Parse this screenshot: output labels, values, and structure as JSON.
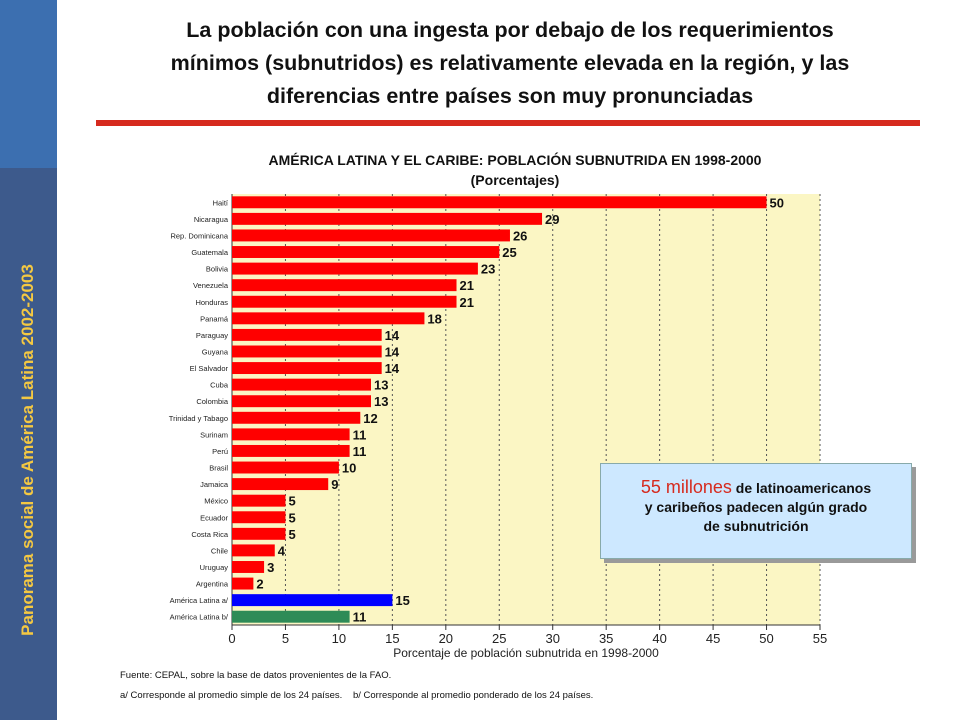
{
  "sidebar": {
    "text": "Panorama social de América Latina 2002-2003"
  },
  "headline": {
    "line1": "La población con una ingesta por debajo de los requerimientos",
    "line2": "mínimos (subnutridos) es relativamente elevada en la región, y las",
    "line3": "diferencias entre países son muy pronunciadas"
  },
  "colors": {
    "bar": "#ff0000",
    "latin_america_a": "#0000ff",
    "latin_america_b": "#2e8b57",
    "plot_bg": "#fbf6c4",
    "accent": "#d62a1e"
  },
  "chart_data": {
    "type": "bar",
    "orientation": "horizontal",
    "title": "AMÉRICA LATINA Y EL CARIBE: POBLACIÓN SUBNUTRIDA EN 1998-2000",
    "subtitle": "(Porcentajes)",
    "xlabel": "Porcentaje de población subnutrida en 1998-2000",
    "xlim": [
      0,
      55
    ],
    "xticks": [
      0,
      5,
      10,
      15,
      20,
      25,
      30,
      35,
      40,
      45,
      50,
      55
    ],
    "grid": "vertical dashed",
    "categories": [
      "Haití",
      "Nicaragua",
      "Rep. Dominicana",
      "Guatemala",
      "Bolivia",
      "Venezuela",
      "Honduras",
      "Panamá",
      "Paraguay",
      "Guyana",
      "El Salvador",
      "Cuba",
      "Colombia",
      "Trinidad y Tabago",
      "Surinam",
      "Perú",
      "Brasil",
      "Jamaica",
      "México",
      "Ecuador",
      "Costa Rica",
      "Chile",
      "Uruguay",
      "Argentina",
      "América Latina a/",
      "América Latina b/"
    ],
    "values": [
      50,
      29,
      26,
      25,
      23,
      21,
      21,
      18,
      14,
      14,
      14,
      13,
      13,
      12,
      11,
      11,
      10,
      9,
      5,
      5,
      5,
      4,
      3,
      2,
      15,
      11
    ]
  },
  "callout": {
    "big": "55 millones",
    "line1": "de latinoamericanos",
    "line2": "y caribeños padecen algún grado",
    "line3": "de subnutrición"
  },
  "source": "Fuente: CEPAL, sobre la base de datos provenientes de la FAO.",
  "footnote_a": "a/ Corresponde al promedio simple de los 24 países.",
  "footnote_b": "b/ Corresponde al promedio ponderado de los 24 países."
}
